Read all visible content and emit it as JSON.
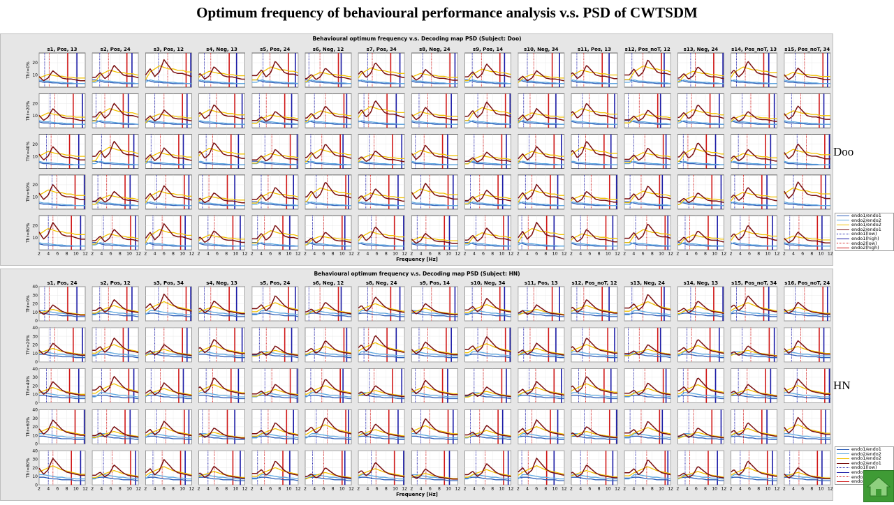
{
  "slide": {
    "title": "Optimum frequency of behavioural performance analysis v.s. PSD of CWTSDM",
    "home_icon": "home-icon"
  },
  "legend_entries": [
    {
      "label": "endo1/endo1",
      "color": "#2f5fb8",
      "dash": false
    },
    {
      "label": "endo2/endo2",
      "color": "#5fa8e0",
      "dash": false
    },
    {
      "label": "endo1/endo2",
      "color": "#f2c200",
      "dash": false
    },
    {
      "label": "endo2/endo1",
      "color": "#7a0f0f",
      "dash": false
    },
    {
      "label": "endo1(low)",
      "color": "#1a1aa6",
      "dash": true
    },
    {
      "label": "endo1(high)",
      "color": "#1a1aa6",
      "dash": false
    },
    {
      "label": "endo2(low)",
      "color": "#d01818",
      "dash": true
    },
    {
      "label": "endo2(high)",
      "color": "#d01818",
      "dash": false
    }
  ],
  "panels": [
    {
      "key": "doo",
      "subject_label": "Doo",
      "figure_title": "Behavioural optimum frequency v.s. Decoding map PSD (Subject: Doo)",
      "xlabel": "Frequency [Hz]",
      "row_labels": [
        "Thr=0%",
        "Thr=20%",
        "Thr=40%",
        "Thr=60%",
        "Thr=80%"
      ],
      "xticks": [
        "2",
        "4",
        "6",
        "8",
        "10",
        "12"
      ],
      "yticks": [
        "10",
        "20"
      ],
      "xlim": [
        2,
        12
      ],
      "ylim": [
        0,
        28
      ],
      "subplot_titles": [
        "s1, Pos, 13",
        "s2, Pos, 24",
        "s3, Pos, 12",
        "s4, Neg, 13",
        "s5, Pos, 24",
        "s6, Neg, 12",
        "s7, Pos, 34",
        "s8, Neg, 24",
        "s9, Pos, 14",
        "s10, Neg, 34",
        "s11, Pos, 13",
        "s12, Pos_noT, 12",
        "s13, Neg, 24",
        "s14, Pos_noT, 13",
        "s15, Pos_noT, 34"
      ]
    },
    {
      "key": "hn",
      "subject_label": "HN",
      "figure_title": "Behavioural optimum frequency v.s. Decoding map PSD (Subject: HN)",
      "xlabel": "Frequency [Hz]",
      "row_labels": [
        "Thr=0%",
        "Thr=20%",
        "Thr=40%",
        "Thr=60%",
        "Thr=80%"
      ],
      "xticks": [
        "2",
        "4",
        "6",
        "8",
        "10",
        "12"
      ],
      "yticks": [
        "0",
        "10",
        "20",
        "30",
        "40"
      ],
      "xlim": [
        2,
        12
      ],
      "ylim": [
        0,
        40
      ],
      "subplot_titles": [
        "s1, Pos, 24",
        "s2, Pos, 12",
        "s3, Pos, 34",
        "s4, Neg, 13",
        "s5, Pos, 24",
        "s6, Neg, 12",
        "s8, Neg, 24",
        "s9, Pos, 14",
        "s10, Neg, 34",
        "s11, Pos, 13",
        "s12, Pos_noT, 12",
        "s13, Neg, 24",
        "s14, Neg, 13",
        "s15, Pos_noT, 34",
        "s16, Pos_noT, 24"
      ]
    }
  ],
  "chart_data": [
    {
      "type": "line",
      "title": "Behavioural optimum frequency v.s. Decoding map PSD (Subject: Doo)",
      "xlabel": "Frequency [Hz]",
      "ylabel": "",
      "xlim": [
        2,
        12
      ],
      "ylim": [
        0,
        28
      ],
      "x": [
        2,
        3,
        4,
        5,
        6,
        7,
        8,
        9,
        10,
        11,
        12
      ],
      "rows": [
        "Thr=0%",
        "Thr=20%",
        "Thr=40%",
        "Thr=60%",
        "Thr=80%"
      ],
      "series": [
        {
          "name": "endo1/endo1",
          "values": [
            6,
            5,
            4,
            4,
            3.5,
            3.5,
            3,
            3,
            3,
            3,
            3
          ]
        },
        {
          "name": "endo2/endo2",
          "values": [
            4,
            6,
            5,
            5,
            4.5,
            4,
            4,
            3.5,
            3.5,
            3,
            3
          ]
        },
        {
          "name": "endo1/endo2",
          "values": [
            5,
            10,
            12,
            14,
            13,
            12,
            12,
            11,
            11,
            10,
            10
          ]
        },
        {
          "name": "endo2/endo1",
          "values": [
            8,
            12,
            7,
            10,
            18,
            14,
            10,
            9,
            9,
            8,
            7
          ]
        }
      ],
      "markers": {
        "endo1(low)": 4,
        "endo1(high)": 11,
        "endo2(low)": 5,
        "endo2(high)": 9
      }
    },
    {
      "type": "line",
      "title": "Behavioural optimum frequency v.s. Decoding map PSD (Subject: HN)",
      "xlabel": "Frequency [Hz]",
      "ylabel": "",
      "xlim": [
        2,
        12
      ],
      "ylim": [
        0,
        40
      ],
      "x": [
        2,
        3,
        4,
        5,
        6,
        7,
        8,
        9,
        10,
        11,
        12
      ],
      "rows": [
        "Thr=0%",
        "Thr=20%",
        "Thr=40%",
        "Thr=60%",
        "Thr=80%"
      ],
      "series": [
        {
          "name": "endo1/endo1",
          "values": [
            8,
            9,
            9,
            8,
            7,
            7,
            6,
            6,
            6,
            5,
            5
          ]
        },
        {
          "name": "endo2/endo2",
          "values": [
            7,
            12,
            12,
            11,
            10,
            9,
            9,
            8,
            8,
            7,
            7
          ]
        },
        {
          "name": "endo1/endo2",
          "values": [
            9,
            12,
            14,
            16,
            18,
            16,
            14,
            13,
            12,
            11,
            10
          ]
        },
        {
          "name": "endo2/endo1",
          "values": [
            12,
            16,
            10,
            14,
            25,
            20,
            15,
            12,
            11,
            10,
            9
          ]
        }
      ],
      "markers": {
        "endo1(low)": 4,
        "endo1(high)": 11,
        "endo2(low)": 5,
        "endo2(high)": 9
      }
    }
  ]
}
